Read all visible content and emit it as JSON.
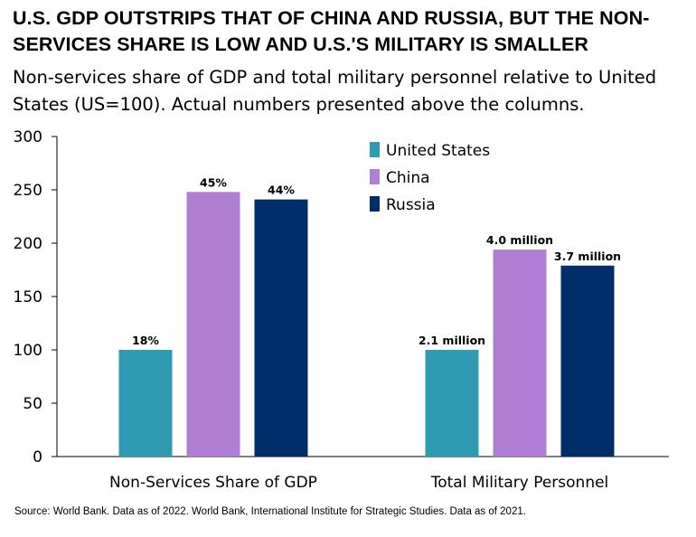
{
  "chart_data": {
    "type": "bar",
    "title": "U.S. GDP OUTSTRIPS THAT OF CHINA AND RUSSIA, BUT THE NON-SERVICES SHARE IS LOW AND U.S.'S MILITARY IS SMALLER",
    "subtitle": "Non-services share of GDP and total military personnel relative to United States (US=100). Actual numbers presented above the columns.",
    "source": "Source: World Bank. Data as of 2022. World Bank, International Institute for Strategic Studies. Data as of 2021.",
    "categories": [
      "Non-Services Share of GDP",
      "Total Military Personnel"
    ],
    "ylim": [
      0,
      300
    ],
    "yticks": [
      0,
      50,
      100,
      150,
      200,
      250,
      300
    ],
    "legend_position": "top-right",
    "series": [
      {
        "name": "United States",
        "color": "#2e9bb3",
        "values": [
          100,
          100
        ],
        "labels": [
          "18%",
          "2.1 million"
        ]
      },
      {
        "name": "China",
        "color": "#b07fd3",
        "values": [
          248,
          194
        ],
        "labels": [
          "45%",
          "4.0 million"
        ]
      },
      {
        "name": "Russia",
        "color": "#002e6b",
        "values": [
          241,
          179
        ],
        "labels": [
          "44%",
          "3.7 million"
        ]
      }
    ]
  }
}
